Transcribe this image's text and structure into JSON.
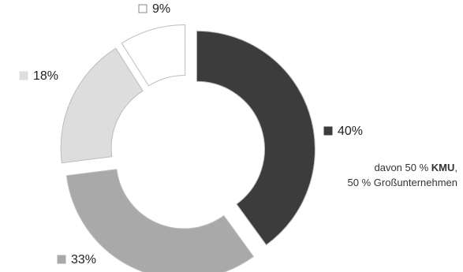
{
  "chart_data": {
    "type": "donut",
    "title": "",
    "series": [
      {
        "slices": [
          {
            "label": "40%",
            "value": 40,
            "color": "#3c3c3c"
          },
          {
            "label": "33%",
            "value": 33,
            "color": "#a9a9a9"
          },
          {
            "label": "18%",
            "value": 18,
            "color": "#dddddd"
          },
          {
            "label": "9%",
            "value": 9,
            "color": "#ffffff"
          }
        ]
      }
    ],
    "exploded": true
  },
  "annotation": {
    "line1_prefix": "davon 50 % ",
    "line1_bold": "KMU",
    "line1_suffix": ",",
    "line2": "50 % Großunternehmen"
  }
}
